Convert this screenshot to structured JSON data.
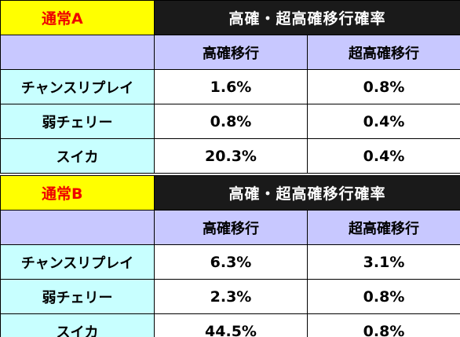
{
  "tables": [
    {
      "mode": "通常A",
      "title": "高確・超高確移行確率",
      "columns": [
        "高確移行",
        "超高確移行"
      ],
      "rows": [
        {
          "label": "チャンスリプレイ",
          "values": [
            "1.6%",
            "0.8%"
          ]
        },
        {
          "label": "弱チェリー",
          "values": [
            "0.8%",
            "0.4%"
          ]
        },
        {
          "label": "スイカ",
          "values": [
            "20.3%",
            "0.4%"
          ]
        }
      ]
    },
    {
      "mode": "通常B",
      "title": "高確・超高確移行確率",
      "columns": [
        "高確移行",
        "超高確移行"
      ],
      "rows": [
        {
          "label": "チャンスリプレイ",
          "values": [
            "6.3%",
            "3.1%"
          ]
        },
        {
          "label": "弱チェリー",
          "values": [
            "2.3%",
            "0.8%"
          ]
        },
        {
          "label": "スイカ",
          "values": [
            "44.5%",
            "0.8%"
          ]
        }
      ]
    }
  ],
  "colors": {
    "mode_bg": "#ffff00",
    "mode_text": "#ee0000",
    "title_bg": "#1a1a1a",
    "colhead_bg": "#c8c8ff",
    "rowlabel_bg": "#c8ffff"
  }
}
